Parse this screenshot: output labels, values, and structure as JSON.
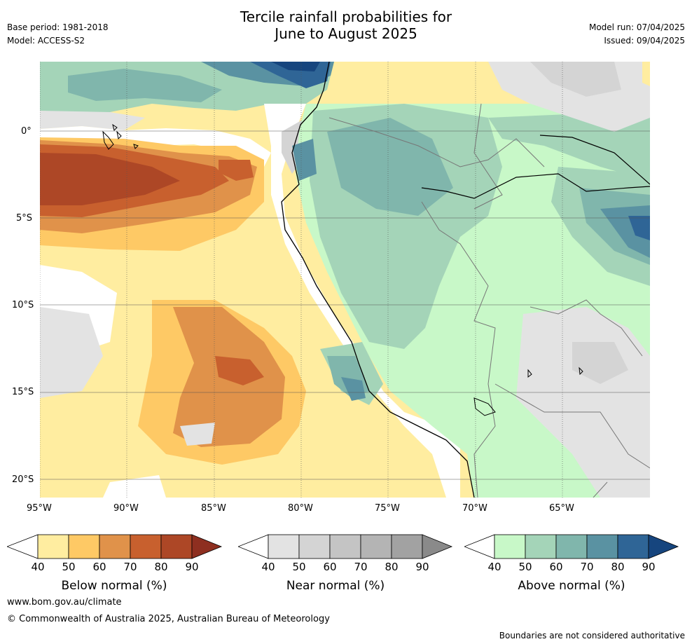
{
  "header": {
    "title_line1": "Tercile rainfall probabilities for",
    "title_line2": "June to August 2025",
    "base_period": "Base period: 1981-2018",
    "model": "Model: ACCESS-S2",
    "model_run": "Model run: 07/04/2025",
    "issued": "Issued: 09/04/2025"
  },
  "map": {
    "lat_labels": [
      "0°",
      "5°S",
      "10°S",
      "15°S",
      "20°S"
    ],
    "lon_labels": [
      "95°W",
      "90°W",
      "85°W",
      "80°W",
      "75°W",
      "70°W",
      "65°W"
    ]
  },
  "colorbars": [
    {
      "title": "Below normal (%)",
      "ticks": [
        "40",
        "50",
        "60",
        "70",
        "80",
        "90"
      ],
      "colors": [
        "#ffeda0",
        "#fec965",
        "#e0924a",
        "#c8602e",
        "#ad4726",
        "#8e2f20"
      ]
    },
    {
      "title": "Near normal (%)",
      "ticks": [
        "40",
        "50",
        "60",
        "70",
        "80",
        "90"
      ],
      "colors": [
        "#e3e3e3",
        "#d4d4d4",
        "#c4c4c4",
        "#b4b4b4",
        "#a2a2a2",
        "#8a8a8a"
      ]
    },
    {
      "title": "Above normal (%)",
      "ticks": [
        "40",
        "50",
        "60",
        "70",
        "80",
        "90"
      ],
      "colors": [
        "#c8f8c8",
        "#a4d4b8",
        "#80b6ac",
        "#5a92a2",
        "#2f6596",
        "#16457e"
      ]
    }
  ],
  "footer": {
    "url": "www.bom.gov.au/climate",
    "copyright": "© Commonwealth of Australia 2025, Australian Bureau of Meteorology",
    "disclaimer": "Boundaries are not considered authoritative"
  }
}
